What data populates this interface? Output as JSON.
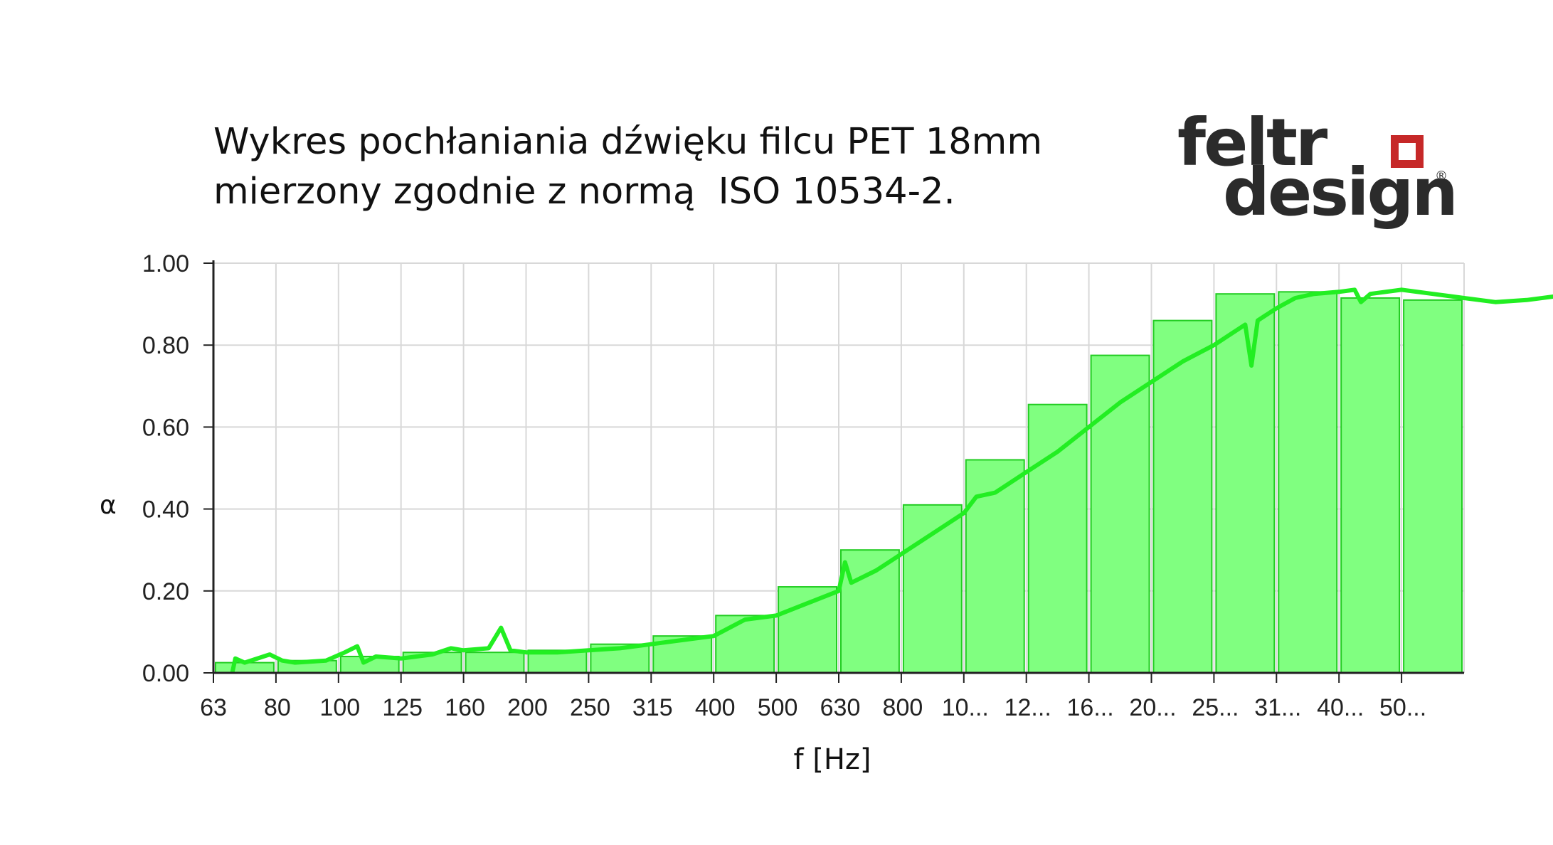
{
  "title": {
    "line1": "Wykres pochłaniania dźwięku filcu PET 18mm",
    "line2": "mierzony zgodnie z normą  ISO 10534-2."
  },
  "logo": {
    "line1": "feltr",
    "line2": "design",
    "registered": "®"
  },
  "colors": {
    "bar_fill": "#80ff80",
    "bar_stroke": "#22cc22",
    "line": "#22ee22",
    "grid": "#d8d8d8",
    "axis": "#222222",
    "logo_text": "#2b2b2b",
    "logo_square": "#c62828"
  },
  "chart_data": {
    "type": "bar",
    "title": "Wykres pochłaniania dźwięku filcu PET 18mm mierzony zgodnie z normą  ISO 10534-2.",
    "xlabel": "f [Hz]",
    "ylabel": "α",
    "ylim": [
      0,
      1
    ],
    "grid": true,
    "categories": [
      "63",
      "80",
      "100",
      "125",
      "160",
      "200",
      "250",
      "315",
      "400",
      "500",
      "630",
      "800",
      "10...",
      "12...",
      "16...",
      "20...",
      "25...",
      "31...",
      "40...",
      "50..."
    ],
    "yticks": [
      "0.00",
      "0.20",
      "0.40",
      "0.60",
      "0.80",
      "1.00"
    ],
    "series": [
      {
        "type": "bar",
        "values": [
          0.025,
          0.03,
          0.04,
          0.05,
          0.05,
          0.055,
          0.07,
          0.09,
          0.14,
          0.21,
          0.3,
          0.41,
          0.52,
          0.655,
          0.775,
          0.86,
          0.925,
          0.93,
          0.915,
          0.91
        ]
      },
      {
        "type": "line",
        "points": [
          [
            0.3,
            0.0
          ],
          [
            0.35,
            0.035
          ],
          [
            0.5,
            0.025
          ],
          [
            0.9,
            0.045
          ],
          [
            1.1,
            0.03
          ],
          [
            1.3,
            0.025
          ],
          [
            1.8,
            0.03
          ],
          [
            2.1,
            0.05
          ],
          [
            2.3,
            0.065
          ],
          [
            2.4,
            0.025
          ],
          [
            2.6,
            0.04
          ],
          [
            3.0,
            0.035
          ],
          [
            3.5,
            0.045
          ],
          [
            3.8,
            0.06
          ],
          [
            4.0,
            0.055
          ],
          [
            4.4,
            0.06
          ],
          [
            4.6,
            0.11
          ],
          [
            4.75,
            0.055
          ],
          [
            5.0,
            0.05
          ],
          [
            5.5,
            0.05
          ],
          [
            6.0,
            0.055
          ],
          [
            6.5,
            0.06
          ],
          [
            7.0,
            0.07
          ],
          [
            7.5,
            0.08
          ],
          [
            8.0,
            0.09
          ],
          [
            8.5,
            0.13
          ],
          [
            9.0,
            0.14
          ],
          [
            9.5,
            0.17
          ],
          [
            10.0,
            0.2
          ],
          [
            10.1,
            0.27
          ],
          [
            10.2,
            0.22
          ],
          [
            10.6,
            0.25
          ],
          [
            11.0,
            0.29
          ],
          [
            11.5,
            0.34
          ],
          [
            12.0,
            0.39
          ],
          [
            12.2,
            0.43
          ],
          [
            12.5,
            0.44
          ],
          [
            13.0,
            0.49
          ],
          [
            13.5,
            0.54
          ],
          [
            14.0,
            0.6
          ],
          [
            14.5,
            0.66
          ],
          [
            15.0,
            0.71
          ],
          [
            15.5,
            0.76
          ],
          [
            16.0,
            0.8
          ],
          [
            16.3,
            0.83
          ],
          [
            16.5,
            0.85
          ],
          [
            16.6,
            0.75
          ],
          [
            16.7,
            0.86
          ],
          [
            17.0,
            0.89
          ],
          [
            17.3,
            0.915
          ],
          [
            17.6,
            0.925
          ],
          [
            18.0,
            0.93
          ],
          [
            18.25,
            0.935
          ],
          [
            18.35,
            0.905
          ],
          [
            18.5,
            0.925
          ],
          [
            19.0,
            0.935
          ],
          [
            19.5,
            0.925
          ],
          [
            20.0,
            0.915
          ],
          [
            20.5,
            0.905
          ],
          [
            21.0,
            0.91
          ],
          [
            21.5,
            0.92
          ]
        ]
      }
    ]
  }
}
